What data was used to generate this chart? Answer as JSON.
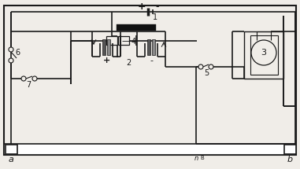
{
  "bg_color": "#f0ede8",
  "line_color": "#1a1a1a",
  "lw_main": 1.2,
  "lw_thin": 0.8,
  "label_1": "1",
  "label_2": "2",
  "label_3": "3",
  "label_4": "4",
  "label_5": "5",
  "label_6": "6",
  "label_7": "7",
  "label_a": "a",
  "label_b": "b",
  "label_n": "n",
  "label_B": "B",
  "plus": "+",
  "minus": "-"
}
